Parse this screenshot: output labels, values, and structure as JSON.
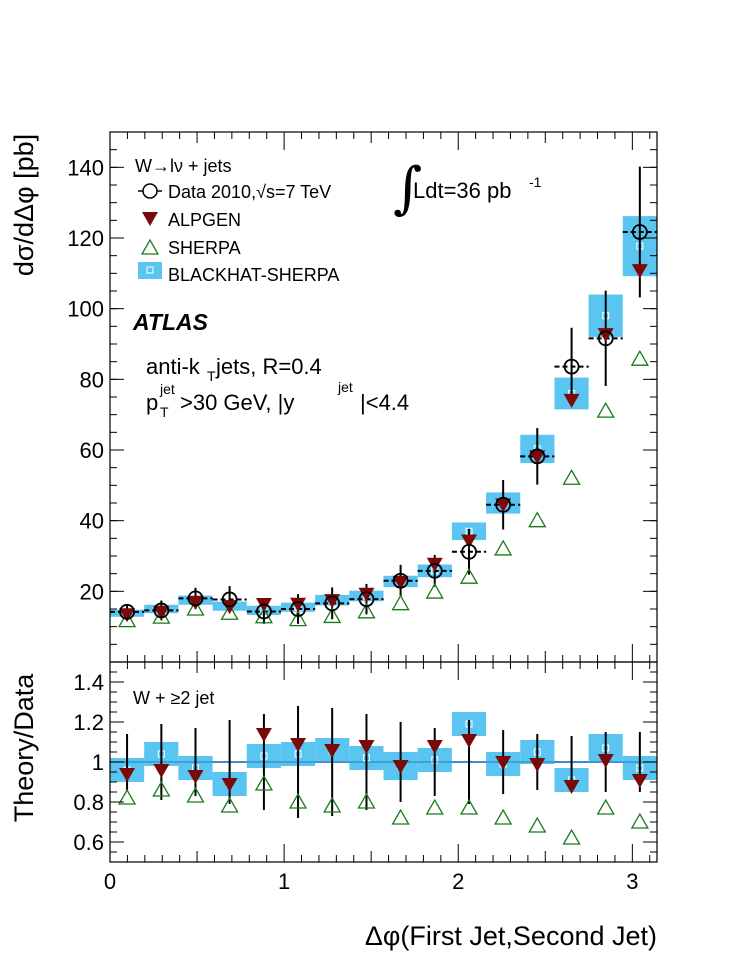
{
  "chart_data": [
    {
      "type": "scatter",
      "panel": "main",
      "ylabel": "dσ/dΔφ [pb]",
      "xlabel": "Δφ(First Jet,Second Jet)",
      "xlim": [
        0,
        3.1416
      ],
      "ylim": [
        0,
        150
      ],
      "yticks": [
        20,
        40,
        60,
        80,
        100,
        120,
        140
      ],
      "xticks": [
        0,
        1,
        2,
        3
      ],
      "bin_edges": [
        0.0,
        0.1963,
        0.3927,
        0.589,
        0.7854,
        0.9817,
        1.1781,
        1.3744,
        1.5708,
        1.7671,
        1.9635,
        2.1598,
        2.3562,
        2.5525,
        2.7489,
        2.9452,
        3.1416
      ],
      "x": [
        0.098,
        0.295,
        0.491,
        0.687,
        0.884,
        1.08,
        1.276,
        1.473,
        1.669,
        1.865,
        2.062,
        2.258,
        2.454,
        2.651,
        2.847,
        3.043
      ],
      "series": [
        {
          "name": "Data 2010,√s=7 TeV",
          "marker": "open-circle",
          "values": [
            14.2,
            14.6,
            18.0,
            17.7,
            14.3,
            15.0,
            16.6,
            17.8,
            23.0,
            25.8,
            31.2,
            44.5,
            58.2,
            83.6,
            91.6,
            121.7
          ],
          "errors": [
            2.0,
            2.8,
            3.0,
            3.8,
            3.5,
            4.2,
            4.5,
            4.3,
            4.5,
            4.5,
            6.5,
            7.0,
            8.0,
            11.0,
            13.5,
            18.5
          ]
        },
        {
          "name": "ALPGEN",
          "marker": "filled-triangle-down",
          "values": [
            13.5,
            14.2,
            17.0,
            15.8,
            16.4,
            16.5,
            17.5,
            19.3,
            22.7,
            27.8,
            34.4,
            44.6,
            58.2,
            74.2,
            92.8,
            110.9
          ]
        },
        {
          "name": "SHERPA",
          "marker": "open-triangle-up",
          "values": [
            11.7,
            12.7,
            15.0,
            13.8,
            12.8,
            12.0,
            12.9,
            14.2,
            16.5,
            19.8,
            24.0,
            32.0,
            40.0,
            52.0,
            71.0,
            85.7
          ]
        },
        {
          "name": "BLACKHAT-SHERPA",
          "marker": "band",
          "values": [
            13.8,
            15.0,
            17.5,
            15.8,
            14.6,
            15.5,
            17.5,
            18.7,
            22.8,
            25.8,
            37.0,
            45.0,
            60.3,
            76.0,
            98.0,
            117.7
          ],
          "band_half": [
            1.0,
            1.2,
            1.3,
            1.3,
            1.3,
            1.3,
            1.5,
            1.5,
            1.6,
            1.8,
            2.5,
            3.0,
            4.0,
            4.5,
            6.0,
            8.5
          ]
        }
      ],
      "legend_header": "W→lν + jets",
      "legend_placement": "top-left",
      "annotations": {
        "luminosity_prefix": "Ldt=36 pb",
        "luminosity_sup": "-1",
        "experiment": "ATLAS",
        "jets_line": "anti-k",
        "jets_sub": "T",
        "jets_rest": " jets, R=0.4",
        "cut_p": "p",
        "cut_sup1": "jet",
        "cut_sub1": "T",
        "cut_mid": ">30 GeV, |y",
        "cut_sup2": "jet",
        "cut_end": "|<4.4"
      }
    },
    {
      "type": "scatter",
      "panel": "ratio",
      "ylabel": "Theory/Data",
      "ylim": [
        0.5,
        1.5
      ],
      "yticks": [
        0.6,
        0.8,
        1,
        1.2,
        1.4
      ],
      "ytick_labels": [
        "0.6",
        "0.8",
        "1",
        "1.2",
        "1.4"
      ],
      "label": "W + ≥2 jet",
      "reference_line": 1.0,
      "data_rel_err": [
        0.14,
        0.19,
        0.17,
        0.21,
        0.24,
        0.28,
        0.27,
        0.24,
        0.2,
        0.17,
        0.21,
        0.16,
        0.14,
        0.13,
        0.15,
        0.15
      ],
      "series": [
        {
          "name": "ALPGEN",
          "values": [
            0.94,
            0.96,
            0.93,
            0.89,
            1.14,
            1.09,
            1.06,
            1.08,
            0.98,
            1.08,
            1.11,
            1.0,
            0.99,
            0.88,
            1.01,
            0.91
          ]
        },
        {
          "name": "SHERPA",
          "values": [
            0.82,
            0.86,
            0.83,
            0.78,
            0.89,
            0.8,
            0.78,
            0.8,
            0.72,
            0.77,
            0.77,
            0.72,
            0.68,
            0.62,
            0.77,
            0.7
          ]
        },
        {
          "name": "BLACKHAT-SHERPA",
          "values": [
            0.96,
            1.04,
            0.97,
            0.89,
            1.03,
            1.04,
            1.06,
            1.02,
            0.98,
            1.01,
            1.19,
            0.99,
            1.05,
            0.91,
            1.07,
            0.97
          ],
          "band_half": [
            0.06,
            0.06,
            0.06,
            0.06,
            0.06,
            0.06,
            0.06,
            0.06,
            0.07,
            0.06,
            0.06,
            0.06,
            0.06,
            0.06,
            0.07,
            0.06
          ]
        }
      ]
    }
  ],
  "colors": {
    "band": "#5bc5f2",
    "alpgen": "#7a0a0a",
    "sherpa": "#1a7a1a",
    "data": "#000000"
  }
}
